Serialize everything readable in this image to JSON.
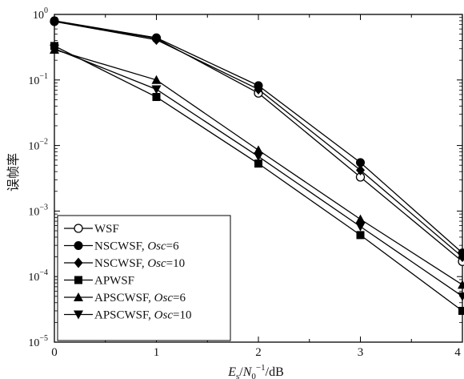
{
  "chart_data": {
    "type": "line",
    "ylabel": "误帧率",
    "xlabel_parts": {
      "e": "E",
      "s": "s",
      "slash": "/",
      "n": "N",
      "zero": "0",
      "sup": "−1",
      "unit": "/dB"
    },
    "xlim": [
      0,
      4
    ],
    "x_ticks": [
      "0",
      "1",
      "2",
      "3",
      "4"
    ],
    "y_scale": "log",
    "ylim": [
      1e-05,
      1
    ],
    "y_ticks": [
      {
        "base": "10",
        "exp": "0"
      },
      {
        "base": "10",
        "exp": "−1"
      },
      {
        "base": "10",
        "exp": "−2"
      },
      {
        "base": "10",
        "exp": "−3"
      },
      {
        "base": "10",
        "exp": "−4"
      },
      {
        "base": "10",
        "exp": "−5"
      }
    ],
    "grid": false,
    "legend_position": "bottom-left",
    "x": [
      0,
      1,
      2,
      3,
      4
    ],
    "series": [
      {
        "name": "WSF",
        "marker": "circle-open",
        "color": "#000000",
        "values": [
          0.78,
          0.43,
          0.063,
          0.0033,
          0.00017
        ]
      },
      {
        "name": "NSCWSF,",
        "italic": "Osc",
        "suffix": "=6",
        "marker": "circle-filled",
        "color": "#000000",
        "values": [
          0.8,
          0.44,
          0.082,
          0.0055,
          0.00023
        ]
      },
      {
        "name": "NSCWSF,",
        "italic": "Osc",
        "suffix": "=10",
        "marker": "diamond-filled",
        "color": "#000000",
        "values": [
          0.78,
          0.41,
          0.072,
          0.0042,
          0.0002
        ]
      },
      {
        "name": "APWSF",
        "marker": "square-filled",
        "color": "#000000",
        "values": [
          0.33,
          0.055,
          0.0053,
          0.00043,
          3e-05
        ]
      },
      {
        "name": "APSCWSF,",
        "italic": "Osc",
        "suffix": "=6",
        "marker": "triangle-up-filled",
        "color": "#000000",
        "values": [
          0.29,
          0.1,
          0.0085,
          0.00075,
          7.5e-05
        ]
      },
      {
        "name": "APSCWSF,",
        "italic": "Osc",
        "suffix": "=10",
        "marker": "triangle-down-filled",
        "color": "#000000",
        "values": [
          0.3,
          0.072,
          0.0068,
          0.00058,
          5e-05
        ]
      }
    ]
  }
}
